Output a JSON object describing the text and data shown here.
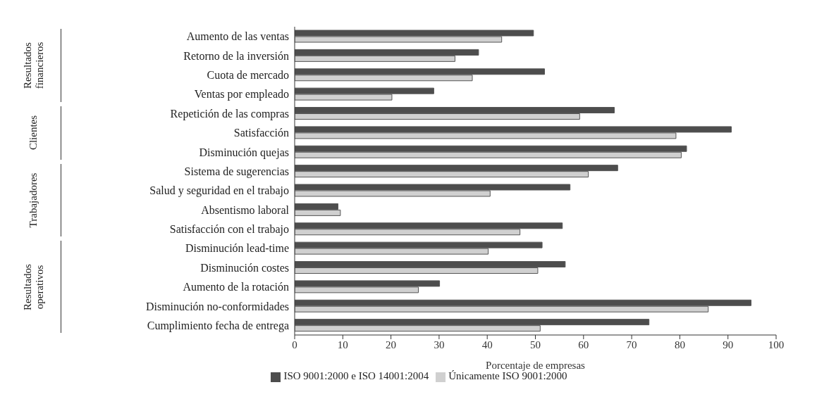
{
  "chart_data": {
    "type": "bar",
    "orientation": "horizontal",
    "categories": [
      "Aumento de las ventas",
      "Retorno de la inversión",
      "Cuota de mercado",
      "Ventas por empleado",
      "Repetición de las compras",
      "Satisfacción",
      "Disminución quejas",
      "Sistema de sugerencias",
      "Salud y seguridad en el trabajo",
      "Absentismo laboral",
      "Satisfacción con el trabajo",
      "Disminución lead-time",
      "Disminución costes",
      "Aumento de la rotación",
      "Disminución no-conformidades",
      "Cumplimiento fecha de entrega"
    ],
    "series": [
      {
        "name": "ISO 9001:2000 e ISO 14001:2004",
        "color": "#4d4d4d",
        "values": [
          49.6,
          38.2,
          51.9,
          28.9,
          66.4,
          90.7,
          81.4,
          67.1,
          57.2,
          9.0,
          55.6,
          51.4,
          56.2,
          30.1,
          94.8,
          73.6
        ]
      },
      {
        "name": "Únicamente ISO 9001:2000",
        "color": "#d0d0d0",
        "values": [
          43.0,
          33.3,
          36.9,
          20.2,
          59.2,
          79.2,
          80.3,
          61.0,
          40.6,
          9.5,
          46.8,
          40.2,
          50.5,
          25.7,
          85.9,
          51.0
        ]
      }
    ],
    "xlabel": "Porcentaje de empresas",
    "xlim": [
      0,
      100
    ],
    "xticks": [
      0,
      10,
      20,
      30,
      40,
      50,
      60,
      70,
      80,
      90,
      100
    ],
    "annotations": [
      "Resultados financieros",
      "Clientes",
      "Trabajadores",
      "Resultados operativos"
    ],
    "legend": "bottom",
    "grid": false
  }
}
